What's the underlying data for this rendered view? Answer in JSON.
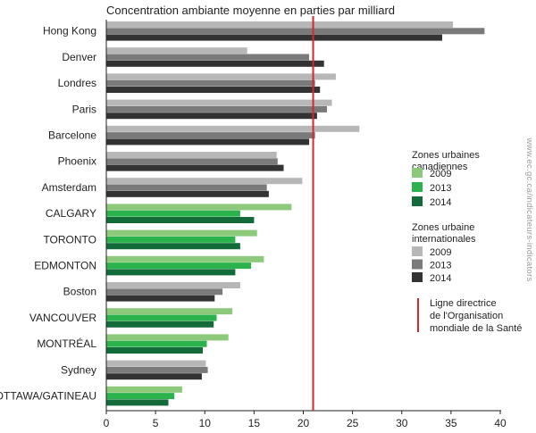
{
  "chart_data": {
    "type": "bar",
    "orientation": "horizontal",
    "title": "Concentration ambiante moyenne en parties par milliard",
    "xlabel": "",
    "ylabel": "",
    "xlim": [
      0,
      40
    ],
    "x_ticks": [
      0,
      5,
      10,
      15,
      20,
      25,
      30,
      35,
      40
    ],
    "categories": [
      "Hong Kong",
      "Denver",
      "Londres",
      "Paris",
      "Barcelone",
      "Phoenix",
      "Amsterdam",
      "CALGARY",
      "TORONTO",
      "EDMONTON",
      "Boston",
      "VANCOUVER",
      "MONTRÉAL",
      "Sydney",
      "OTTAWA/GATINEAU"
    ],
    "group": [
      "intl",
      "intl",
      "intl",
      "intl",
      "intl",
      "intl",
      "intl",
      "cdn",
      "cdn",
      "cdn",
      "intl",
      "cdn",
      "cdn",
      "intl",
      "cdn"
    ],
    "series": [
      {
        "year": "2009",
        "values": [
          35.2,
          14.3,
          23.3,
          22.9,
          25.7,
          17.3,
          19.9,
          18.8,
          15.3,
          16.0,
          13.6,
          12.8,
          12.4,
          10.1,
          7.7
        ]
      },
      {
        "year": "2013",
        "values": [
          38.4,
          20.6,
          21.2,
          22.4,
          21.2,
          17.4,
          16.3,
          13.6,
          13.1,
          14.7,
          11.8,
          11.2,
          10.2,
          10.3,
          6.9
        ]
      },
      {
        "year": "2014",
        "values": [
          34.1,
          22.1,
          21.7,
          21.4,
          20.6,
          18.0,
          16.5,
          15.0,
          13.6,
          13.1,
          11.0,
          10.9,
          9.8,
          9.7,
          6.3
        ]
      }
    ],
    "reference_line": {
      "value": 21,
      "label": "Ligne directrice de l'Organisation mondiale de la Santé",
      "color": "#d6262f"
    },
    "legend": {
      "placement": "right",
      "cdn_title": "Zones urbaines canadiennes",
      "intl_title": "Zones urbaine internationales",
      "years": [
        "2009",
        "2013",
        "2014"
      ]
    },
    "colors": {
      "cdn": [
        "#8dc97a",
        "#2bb24c",
        "#136b3a"
      ],
      "intl": [
        "#b7b7b7",
        "#7a7a7a",
        "#333333"
      ]
    },
    "grid": false
  },
  "watermark": "www.ec.gc.ca/indicateurs-indicators"
}
